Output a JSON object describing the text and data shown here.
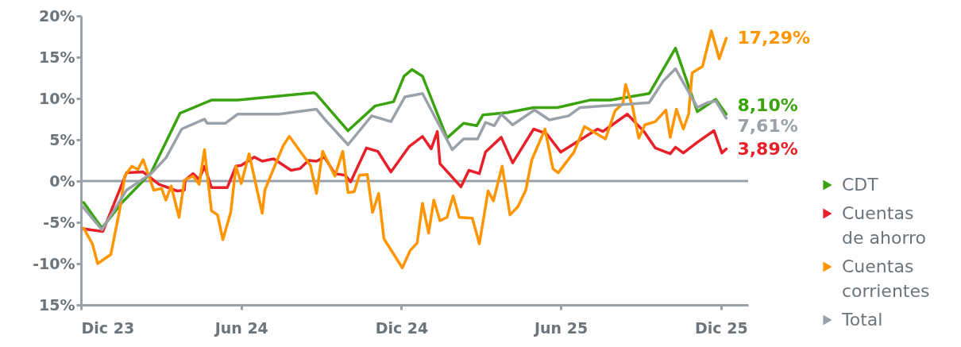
{
  "chart_data": {
    "type": "line",
    "xlim": [
      "2023-12-01",
      "2026-01-01"
    ],
    "ylim": [
      -15,
      20
    ],
    "xticks": [
      {
        "value": "2023-12-01",
        "label": "Dic 23"
      },
      {
        "value": "2024-06-01",
        "label": "Jun 24"
      },
      {
        "value": "2024-12-01",
        "label": "Dic 24"
      },
      {
        "value": "2025-06-01",
        "label": "Jun 25"
      },
      {
        "value": "2025-12-01",
        "label": "Dic 25"
      }
    ],
    "yticks": [
      {
        "value": 20,
        "label": "20%"
      },
      {
        "value": 15,
        "label": "15%"
      },
      {
        "value": 10,
        "label": "10%"
      },
      {
        "value": 5,
        "label": "5%"
      },
      {
        "value": 0,
        "label": "0%"
      },
      {
        "value": -5,
        "label": "-5%"
      },
      {
        "value": -10,
        "label": "-10%"
      },
      {
        "value": -15,
        "label": "15%"
      }
    ],
    "grid": false,
    "legend": "right",
    "line_style": "solid",
    "marker": "none",
    "ref_lines": [
      {
        "axis": "y",
        "value": 0,
        "color": "#9aa1a8"
      }
    ],
    "series": [
      {
        "name": "CDT",
        "color": "#3aa30f",
        "x": [
          "2023-12-04",
          "2023-12-25",
          "2024-01-16",
          "2024-02-19",
          "2024-03-23",
          "2024-04-28",
          "2024-05-28",
          "2024-08-23",
          "2024-08-26",
          "2024-10-01",
          "2024-11-01",
          "2024-11-22",
          "2024-12-04",
          "2024-12-13",
          "2024-12-25",
          "2025-01-22",
          "2025-02-10",
          "2025-02-25",
          "2025-03-04",
          "2025-04-01",
          "2025-05-01",
          "2025-05-28",
          "2025-06-10",
          "2025-07-04",
          "2025-07-28",
          "2025-09-10",
          "2025-10-10",
          "2025-11-04",
          "2025-11-25",
          "2025-12-07"
        ],
        "values": [
          -2.6,
          -5.7,
          -2.7,
          1.0,
          8.2,
          9.8,
          9.8,
          10.7,
          10.5,
          6.1,
          9.1,
          9.6,
          12.7,
          13.5,
          12.7,
          5.2,
          7.0,
          6.7,
          8.0,
          8.3,
          8.9,
          8.9,
          9.2,
          9.8,
          9.8,
          10.6,
          16.1,
          8.4,
          9.9,
          8.1
        ],
        "value_labels": [
          null,
          null,
          null,
          null,
          null,
          null,
          null,
          null,
          null,
          null,
          null,
          null,
          null,
          null,
          null,
          null,
          null,
          null,
          null,
          null,
          null,
          null,
          null,
          null,
          null,
          null,
          null,
          null,
          null,
          "8,10%"
        ]
      },
      {
        "name": "Cuentas de ahorro",
        "color": "#e8202a",
        "x": [
          "2023-12-04",
          "2023-12-26",
          "2024-01-22",
          "2024-02-10",
          "2024-02-28",
          "2024-03-20",
          "2024-03-28",
          "2024-03-29",
          "2024-04-07",
          "2024-04-14",
          "2024-04-20",
          "2024-04-28",
          "2024-05-16",
          "2024-05-26",
          "2024-06-01",
          "2024-06-16",
          "2024-06-25",
          "2024-07-08",
          "2024-07-28",
          "2024-08-07",
          "2024-08-17",
          "2024-08-26",
          "2024-09-04",
          "2024-09-16",
          "2024-09-28",
          "2024-10-04",
          "2024-10-22",
          "2024-11-04",
          "2024-11-19",
          "2024-12-10",
          "2024-12-25",
          "2025-01-04",
          "2025-01-11",
          "2025-01-14",
          "2025-02-07",
          "2025-02-16",
          "2025-02-28",
          "2025-03-07",
          "2025-03-25",
          "2025-04-07",
          "2025-05-01",
          "2025-05-16",
          "2025-06-01",
          "2025-07-13",
          "2025-07-19",
          "2025-08-16",
          "2025-09-04",
          "2025-09-17",
          "2025-10-04",
          "2025-10-10",
          "2025-10-19",
          "2025-11-04",
          "2025-11-23",
          "2025-12-02",
          "2025-12-07"
        ],
        "values": [
          -5.8,
          -6.1,
          1.0,
          1.1,
          -0.4,
          -1.2,
          -1.1,
          0.1,
          0.9,
          0.2,
          1.8,
          -0.8,
          -0.8,
          1.8,
          1.9,
          2.9,
          2.4,
          2.7,
          1.3,
          1.5,
          2.5,
          2.4,
          2.9,
          0.9,
          0.7,
          -0.1,
          4.0,
          3.6,
          1.1,
          4.2,
          5.4,
          3.9,
          6.0,
          2.1,
          -0.7,
          1.3,
          0.9,
          3.5,
          5.3,
          2.2,
          6.3,
          5.7,
          3.5,
          6.3,
          6.0,
          8.1,
          6.0,
          4.0,
          3.3,
          4.1,
          3.4,
          4.7,
          6.1,
          3.4,
          3.89
        ],
        "value_labels": [
          null,
          null,
          null,
          null,
          null,
          null,
          null,
          null,
          null,
          null,
          null,
          null,
          null,
          null,
          null,
          null,
          null,
          null,
          null,
          null,
          null,
          null,
          null,
          null,
          null,
          null,
          null,
          null,
          null,
          null,
          null,
          null,
          null,
          null,
          null,
          null,
          null,
          null,
          null,
          null,
          null,
          null,
          null,
          null,
          null,
          null,
          null,
          null,
          null,
          null,
          null,
          null,
          null,
          null,
          "3,89%"
        ]
      },
      {
        "name": "Cuentas corrientes",
        "color": "#ff9500",
        "x": [
          "2023-12-04",
          "2023-12-14",
          "2023-12-20",
          "2024-01-04",
          "2024-01-14",
          "2024-01-20",
          "2024-01-28",
          "2024-02-04",
          "2024-02-10",
          "2024-02-22",
          "2024-03-02",
          "2024-03-07",
          "2024-03-13",
          "2024-03-22",
          "2024-03-28",
          "2024-04-07",
          "2024-04-14",
          "2024-04-20",
          "2024-04-28",
          "2024-05-05",
          "2024-05-11",
          "2024-05-20",
          "2024-05-26",
          "2024-06-01",
          "2024-06-10",
          "2024-06-25",
          "2024-06-28",
          "2024-07-08",
          "2024-07-19",
          "2024-07-26",
          "2024-08-19",
          "2024-08-26",
          "2024-09-02",
          "2024-09-16",
          "2024-09-25",
          "2024-10-01",
          "2024-10-08",
          "2024-10-14",
          "2024-10-23",
          "2024-10-29",
          "2024-11-05",
          "2024-11-11",
          "2024-12-02",
          "2024-12-11",
          "2024-12-19",
          "2024-12-25",
          "2025-01-01",
          "2025-01-07",
          "2025-01-14",
          "2025-01-22",
          "2025-01-29",
          "2025-02-05",
          "2025-02-20",
          "2025-02-28",
          "2025-03-10",
          "2025-03-16",
          "2025-03-26",
          "2025-04-04",
          "2025-04-13",
          "2025-04-22",
          "2025-04-29",
          "2025-05-14",
          "2025-05-23",
          "2025-05-29",
          "2025-06-16",
          "2025-06-28",
          "2025-07-22",
          "2025-08-02",
          "2025-08-11",
          "2025-08-14",
          "2025-08-22",
          "2025-08-29",
          "2025-09-05",
          "2025-09-17",
          "2025-09-29",
          "2025-10-04",
          "2025-10-11",
          "2025-10-19",
          "2025-10-25",
          "2025-10-29",
          "2025-11-10",
          "2025-11-20",
          "2025-11-29",
          "2025-12-07"
        ],
        "values": [
          -5.7,
          -7.6,
          -10.0,
          -8.9,
          -3.6,
          0.6,
          1.8,
          1.4,
          2.6,
          -1.1,
          -0.9,
          -2.3,
          -0.6,
          -4.4,
          0.1,
          0.6,
          -0.4,
          3.8,
          -3.6,
          -4.1,
          -7.1,
          -3.8,
          1.8,
          -0.3,
          3.3,
          -3.9,
          -1.1,
          1.5,
          4.3,
          5.4,
          1.9,
          -1.5,
          3.6,
          0.6,
          3.6,
          -1.4,
          -1.3,
          0.7,
          0.8,
          -3.8,
          -1.5,
          -7.0,
          -10.5,
          -8.4,
          -7.5,
          -2.7,
          -6.3,
          -2.3,
          -4.8,
          -4.4,
          -1.8,
          -4.4,
          -4.5,
          -7.6,
          -1.2,
          -2.4,
          1.8,
          -4.1,
          -3.1,
          -1.1,
          2.6,
          6.3,
          1.5,
          1.0,
          3.5,
          6.6,
          5.1,
          8.5,
          9.4,
          11.7,
          9.0,
          5.2,
          6.8,
          7.2,
          8.6,
          5.3,
          8.7,
          6.3,
          8.1,
          13.1,
          13.9,
          18.2,
          14.8,
          17.29
        ],
        "value_labels": [
          null,
          null,
          null,
          null,
          null,
          null,
          null,
          null,
          null,
          null,
          null,
          null,
          null,
          null,
          null,
          null,
          null,
          null,
          null,
          null,
          null,
          null,
          null,
          null,
          null,
          null,
          null,
          null,
          null,
          null,
          null,
          null,
          null,
          null,
          null,
          null,
          null,
          null,
          null,
          null,
          null,
          null,
          null,
          null,
          null,
          null,
          null,
          null,
          null,
          null,
          null,
          null,
          null,
          null,
          null,
          null,
          null,
          null,
          null,
          null,
          null,
          null,
          null,
          null,
          null,
          null,
          null,
          null,
          null,
          null,
          null,
          null,
          null,
          null,
          null,
          null,
          null,
          null,
          null,
          null,
          null,
          null,
          null,
          "17,29%"
        ]
      },
      {
        "name": "Total",
        "color": "#9aa1a8",
        "x": [
          "2023-12-02",
          "2023-12-25",
          "2024-01-22",
          "2024-02-19",
          "2024-03-07",
          "2024-03-25",
          "2024-04-20",
          "2024-04-23",
          "2024-05-14",
          "2024-05-28",
          "2024-07-14",
          "2024-08-26",
          "2024-09-05",
          "2024-10-01",
          "2024-10-28",
          "2024-11-19",
          "2024-12-05",
          "2024-12-25",
          "2025-01-28",
          "2025-02-10",
          "2025-02-26",
          "2025-03-07",
          "2025-03-17",
          "2025-03-25",
          "2025-04-07",
          "2025-05-02",
          "2025-05-19",
          "2025-06-10",
          "2025-06-23",
          "2025-09-10",
          "2025-09-26",
          "2025-10-10",
          "2025-11-04",
          "2025-11-16",
          "2025-11-25",
          "2025-12-07"
        ],
        "values": [
          -3.0,
          -5.9,
          -1.1,
          0.9,
          2.8,
          6.3,
          7.5,
          7.0,
          7.0,
          8.1,
          8.1,
          8.7,
          7.4,
          4.4,
          7.9,
          7.2,
          10.2,
          10.6,
          3.8,
          5.1,
          5.1,
          7.1,
          6.7,
          8.1,
          6.8,
          8.6,
          7.4,
          7.9,
          8.9,
          9.5,
          12.1,
          13.6,
          8.9,
          9.5,
          9.7,
          7.61
        ],
        "value_labels": [
          null,
          null,
          null,
          null,
          null,
          null,
          null,
          null,
          null,
          null,
          null,
          null,
          null,
          null,
          null,
          null,
          null,
          null,
          null,
          null,
          null,
          null,
          null,
          null,
          null,
          null,
          null,
          null,
          null,
          null,
          null,
          null,
          null,
          null,
          null,
          "7,61%"
        ]
      }
    ]
  }
}
